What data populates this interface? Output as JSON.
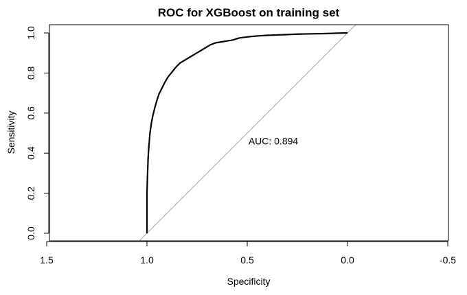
{
  "chart_data": {
    "type": "line",
    "title": "ROC for XGBoost on training set",
    "xlabel": "Specificity",
    "ylabel": "Sensitivity",
    "x_reversed": true,
    "xlim": [
      1.5,
      -0.5
    ],
    "ylim": [
      0.0,
      1.0
    ],
    "xticks": [
      1.5,
      1.0,
      0.5,
      0.0,
      -0.5
    ],
    "xtick_labels": [
      "1.5",
      "1.0",
      "0.5",
      "0.0",
      "-0.5"
    ],
    "yticks": [
      0.0,
      0.2,
      0.4,
      0.6,
      0.8,
      1.0
    ],
    "ytick_labels": [
      "0.0",
      "0.2",
      "0.4",
      "0.6",
      "0.8",
      "1.0"
    ],
    "grid": false,
    "annotation": {
      "text": "AUC: 0.894",
      "x": 0.5,
      "y": 0.46
    },
    "series": [
      {
        "color": "#000000",
        "x": [
          1.0,
          1.0,
          0.997,
          0.994,
          0.99,
          0.985,
          0.978,
          0.97,
          0.96,
          0.95,
          0.94,
          0.925,
          0.91,
          0.895,
          0.875,
          0.855,
          0.835,
          0.81,
          0.785,
          0.76,
          0.735,
          0.71,
          0.685,
          0.66,
          0.63,
          0.6,
          0.57,
          0.54,
          0.5,
          0.45,
          0.4,
          0.35,
          0.3,
          0.25,
          0.2,
          0.15,
          0.1,
          0.05,
          0.0
        ],
        "y": [
          0.0,
          0.2,
          0.3,
          0.38,
          0.44,
          0.5,
          0.55,
          0.59,
          0.63,
          0.665,
          0.695,
          0.725,
          0.755,
          0.78,
          0.805,
          0.83,
          0.85,
          0.865,
          0.88,
          0.895,
          0.91,
          0.925,
          0.94,
          0.95,
          0.955,
          0.96,
          0.965,
          0.975,
          0.98,
          0.985,
          0.988,
          0.99,
          0.992,
          0.994,
          0.995,
          0.996,
          0.997,
          0.999,
          1.0
        ]
      },
      {
        "color": "#aaaaaa",
        "x": [
          1.05,
          -0.05
        ],
        "y": [
          -0.05,
          1.05
        ]
      }
    ]
  }
}
